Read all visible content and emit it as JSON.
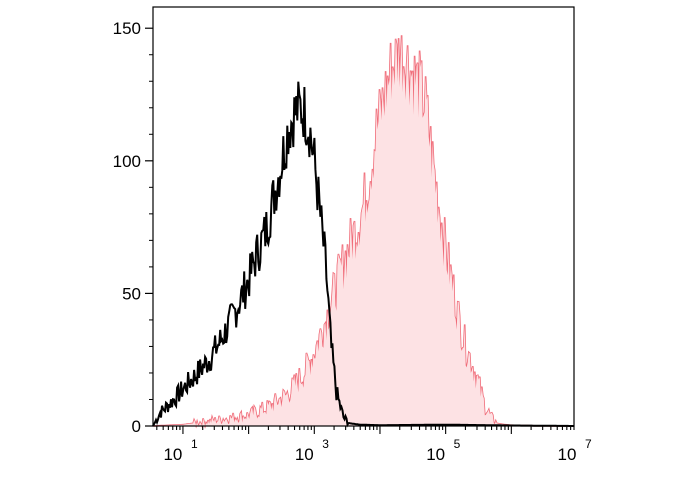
{
  "chart_data": {
    "type": "area",
    "title": "",
    "xlabel": "",
    "ylabel": "",
    "x_scale": "log",
    "xlim": [
      3.5,
      9000000
    ],
    "ylim": [
      0,
      158
    ],
    "x_ticks": [
      {
        "value": 10,
        "base": "10",
        "exp": "1"
      },
      {
        "value": 1000,
        "base": "10",
        "exp": "3"
      },
      {
        "value": 100000,
        "base": "10",
        "exp": "5"
      },
      {
        "value": 10000000,
        "base": "10",
        "exp": "7"
      }
    ],
    "y_ticks": [
      {
        "value": 0,
        "label": "0"
      },
      {
        "value": 50,
        "label": "50"
      },
      {
        "value": 100,
        "label": "100"
      },
      {
        "value": 150,
        "label": "150"
      }
    ],
    "grid": false,
    "series": [
      {
        "style": "line",
        "color": "#000000",
        "x": [
          3.5,
          4.5,
          6,
          8,
          10,
          13,
          18,
          25,
          35,
          50,
          70,
          100,
          130,
          180,
          250,
          320,
          400,
          500,
          600,
          700,
          850,
          1000,
          1200,
          1500,
          1800,
          2200,
          2800,
          3500,
          5000,
          10000,
          100000,
          1000000,
          9000000
        ],
        "y": [
          0,
          5,
          8,
          11,
          14,
          17,
          21,
          25,
          31,
          38,
          46,
          55,
          64,
          73,
          88,
          100,
          112,
          118,
          120,
          119,
          112,
          100,
          82,
          60,
          30,
          12,
          3,
          1,
          0.5,
          0.3,
          0.5,
          0.2,
          0
        ]
      },
      {
        "style": "filled",
        "color": "#f06b78",
        "fill": "#fde2e4",
        "x": [
          3.5,
          10,
          30,
          100,
          200,
          400,
          700,
          1000,
          1500,
          2000,
          3000,
          4000,
          5500,
          7000,
          9000,
          12000,
          15000,
          20000,
          25000,
          32000,
          40000,
          50000,
          60000,
          70000,
          85000,
          100000,
          130000,
          160000,
          200000,
          250000,
          300000,
          350000,
          400000,
          500000,
          600000,
          800000,
          1000000,
          2000000,
          9000000
        ],
        "y": [
          0,
          0.5,
          2,
          4,
          7,
          12,
          20,
          28,
          40,
          50,
          64,
          72,
          82,
          95,
          112,
          125,
          135,
          140,
          138,
          132,
          128,
          120,
          104,
          92,
          78,
          66,
          52,
          40,
          30,
          24,
          18,
          12,
          7,
          3,
          1,
          0.5,
          0.3,
          0.1,
          0
        ]
      }
    ]
  }
}
